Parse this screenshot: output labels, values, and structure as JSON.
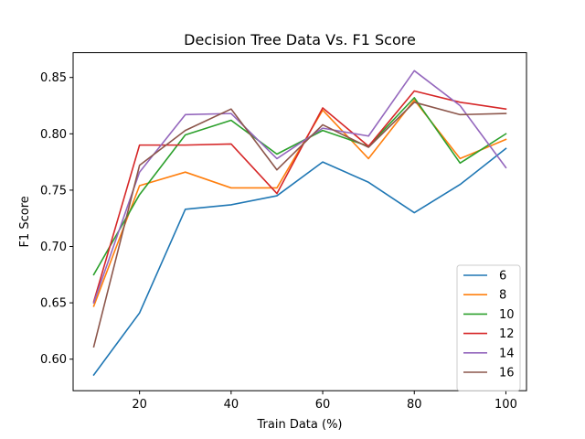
{
  "chart_data": {
    "type": "line",
    "title": "Decision Tree Data Vs. F1 Score",
    "xlabel": "Train Data (%)",
    "ylabel": "F1 Score",
    "x": [
      10,
      20,
      30,
      40,
      50,
      60,
      70,
      80,
      90,
      100
    ],
    "xlim": [
      5.5,
      104.5
    ],
    "ylim": [
      0.572,
      0.872
    ],
    "xticks": [
      20,
      40,
      60,
      80,
      100
    ],
    "xtick_labels": [
      "20",
      "40",
      "60",
      "80",
      "100"
    ],
    "yticks": [
      0.6,
      0.65,
      0.7,
      0.75,
      0.8,
      0.85
    ],
    "ytick_labels": [
      "0.60",
      "0.65",
      "0.70",
      "0.75",
      "0.80",
      "0.85"
    ],
    "grid": false,
    "legend_position": "lower-right",
    "series": [
      {
        "name": "6",
        "color": "#1f77b4",
        "values": [
          0.586,
          0.641,
          0.733,
          0.737,
          0.745,
          0.775,
          0.757,
          0.73,
          0.755,
          0.787
        ]
      },
      {
        "name": "8",
        "color": "#ff7f0e",
        "values": [
          0.647,
          0.754,
          0.766,
          0.752,
          0.752,
          0.821,
          0.778,
          0.83,
          0.778,
          0.795
        ]
      },
      {
        "name": "10",
        "color": "#2ca02c",
        "values": [
          0.675,
          0.746,
          0.799,
          0.812,
          0.782,
          0.803,
          0.789,
          0.832,
          0.774,
          0.8
        ]
      },
      {
        "name": "12",
        "color": "#d62728",
        "values": [
          0.651,
          0.79,
          0.79,
          0.791,
          0.747,
          0.823,
          0.789,
          0.838,
          0.828,
          0.822
        ]
      },
      {
        "name": "14",
        "color": "#9467bd",
        "values": [
          0.65,
          0.766,
          0.817,
          0.818,
          0.778,
          0.805,
          0.798,
          0.856,
          0.825,
          0.77
        ]
      },
      {
        "name": "16",
        "color": "#8c564b",
        "values": [
          0.611,
          0.772,
          0.803,
          0.822,
          0.768,
          0.808,
          0.788,
          0.828,
          0.817,
          0.818
        ]
      }
    ]
  }
}
